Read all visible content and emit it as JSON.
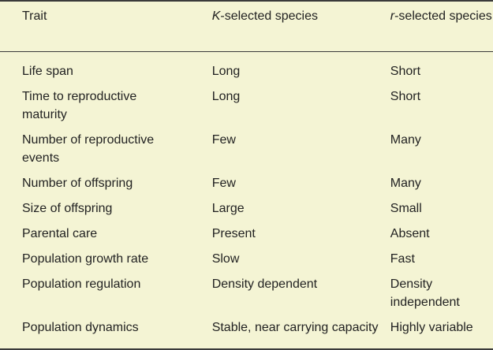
{
  "table": {
    "header": [
      "Trait",
      "K-selected species",
      "r-selected species"
    ],
    "rows": [
      [
        "Life span",
        "Long",
        "Short"
      ],
      [
        "Time to reproductive maturity",
        "Long",
        "Short"
      ],
      [
        "Number of reproductive events",
        "Few",
        "Many"
      ],
      [
        "Number of offspring",
        "Few",
        "Many"
      ],
      [
        "Size of offspring",
        "Large",
        "Small"
      ],
      [
        "Parental care",
        "Present",
        "Absent"
      ],
      [
        "Population growth rate",
        "Slow",
        "Fast"
      ],
      [
        "Population regulation",
        "Density dependent",
        "Density independent"
      ],
      [
        "Population dynamics",
        "Stable, near carrying capacity",
        "Highly variable"
      ]
    ]
  }
}
